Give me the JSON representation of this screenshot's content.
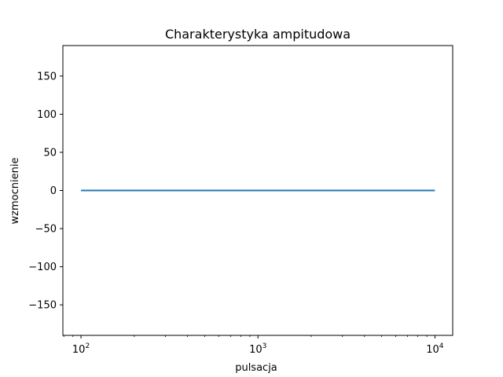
{
  "chart_data": {
    "type": "line",
    "title": "Charakterystyka ampitudowa",
    "xlabel": "pulsacja",
    "ylabel": "wzmocnienie",
    "xscale": "log",
    "xlim": [
      79,
      12600
    ],
    "ylim": [
      -190,
      190
    ],
    "grid": false,
    "xticks": [
      {
        "value": 100,
        "base": "10",
        "exp": "2"
      },
      {
        "value": 1000,
        "base": "10",
        "exp": "3"
      },
      {
        "value": 10000,
        "base": "10",
        "exp": "4"
      }
    ],
    "yticks": [
      {
        "value": 150,
        "label": "150"
      },
      {
        "value": 100,
        "label": "100"
      },
      {
        "value": 50,
        "label": "50"
      },
      {
        "value": 0,
        "label": "0"
      },
      {
        "value": -50,
        "label": "−50"
      },
      {
        "value": -100,
        "label": "−100"
      },
      {
        "value": -150,
        "label": "−150"
      }
    ],
    "series": [
      {
        "color": "#1f77b4",
        "x": [
          100,
          10000
        ],
        "y": [
          0,
          0
        ]
      }
    ]
  }
}
